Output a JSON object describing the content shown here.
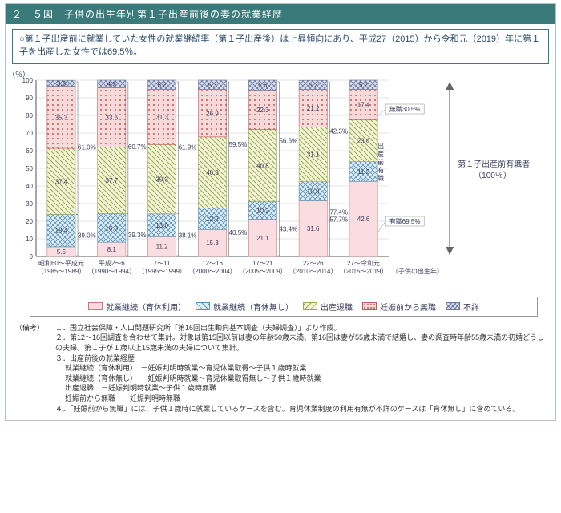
{
  "header": {
    "title": "２－５図　子供の出生年別第１子出産前後の妻の就業経歴"
  },
  "summary": "○第１子出産前に就業していた女性の就業継続率（第１子出産後）は上昇傾向にあり、平成27（2015）から令和元（2019）年に第１子を出産した女性では69.5％。",
  "chart": {
    "type": "stacked-bar",
    "y_label": "（％）",
    "y_max": 100,
    "y_tick_step": 10,
    "categories": [
      {
        "line1": "昭和60～平成元",
        "line2": "（1985～1989）"
      },
      {
        "line1": "平成2～6",
        "line2": "（1990～1994）"
      },
      {
        "line1": "7～11",
        "line2": "（1995～1999）"
      },
      {
        "line1": "12～16",
        "line2": "（2000～2004）"
      },
      {
        "line1": "17～21",
        "line2": "（2005～2009）"
      },
      {
        "line1": "22～26",
        "line2": "（2010～2014）"
      },
      {
        "line1": "27～令和元",
        "line2": "（2015～2019）"
      }
    ],
    "x_axis_right_label": "（子供の出生年）",
    "series_order_bottom_to_top": [
      "就業継続（育休利用）",
      "就業継続（育休無し）",
      "出産退職",
      "妊娠前から無職",
      "不詳"
    ],
    "colors": {
      "就業継続（育休利用）": {
        "fill": "#fadde1",
        "stroke": "#c77"
      },
      "就業継続（育休無し）": {
        "fill": "#dff0f5",
        "stroke": "#5a8fb5",
        "pattern": "hatch-blue"
      },
      "出産退職": {
        "fill": "#f3f6d6",
        "stroke": "#9aa653",
        "pattern": "hatch-green"
      },
      "妊娠前から無職": {
        "fill": "#f6d9d9",
        "stroke": "#c05a5a",
        "pattern": "dots-red"
      },
      "不詳": {
        "fill": "#d9dfea",
        "stroke": "#6a75a0",
        "pattern": "cross-blue"
      }
    },
    "grid_color": "#c8c8c8",
    "axis_color": "#555555",
    "text_color": "#3a3a5a",
    "bar_values": [
      {
        "就業継続（育休利用）": 5.5,
        "就業継続（育休無し）": 18.4,
        "出産退職": 37.4,
        "妊娠前から無職": 35.3,
        "不詳": 3.3
      },
      {
        "就業継続（育休利用）": 8.1,
        "就業継続（育休無し）": 16.3,
        "出産退職": 37.7,
        "妊娠前から無職": 33.6,
        "不詳": 4.3
      },
      {
        "就業継続（育休利用）": 11.2,
        "就業継続（育休無し）": 13.0,
        "出産退職": 39.3,
        "妊娠前から無職": 31.3,
        "不詳": 5.2
      },
      {
        "就業継続（育休利用）": 15.3,
        "就業継続（育休無し）": 12.2,
        "出産退職": 40.3,
        "妊娠前から無職": 26.9,
        "不詳": 5.3
      },
      {
        "就業継続（育休利用）": 21.1,
        "就業継続（育休無し）": 10.2,
        "出産退職": 40.8,
        "妊娠前から無職": 22.3,
        "不詳": 5.6
      },
      {
        "就業継続（育休利用）": 31.6,
        "就業継続（育休無し）": 10.8,
        "出産退職": 31.1,
        "妊娠前から無職": 21.2,
        "不詳": 5.2
      },
      {
        "就業継続（育休利用）": 42.6,
        "就業継続（育休無し）": 11.2,
        "出産退職": 23.6,
        "妊娠前から無職": 17.4,
        "不詳": 5.2
      }
    ],
    "side_annotations": [
      {
        "cat": 0,
        "upper": "61.0%",
        "lower": "39.0%"
      },
      {
        "cat": 1,
        "upper": "60.7%",
        "lower": "39.3%"
      },
      {
        "cat": 2,
        "upper": "61.9%",
        "lower": "38.1%"
      },
      {
        "cat": 3,
        "upper": "59.5%",
        "lower": "40.5%"
      },
      {
        "cat": 4,
        "upper": "56.6%",
        "lower": "43.4%"
      },
      {
        "cat": 5,
        "upper": "42.3%",
        "lower": "57.7%",
        "extra_upper": "77.4%"
      },
      {
        "cat": 6,
        "upper": "",
        "lower": ""
      }
    ],
    "right_labels": {
      "mushoku": "無職30.5%",
      "yuushoku": "有職69.5%",
      "medium_text": "出産前有職",
      "big_label": "第１子出産前有職者\n（100％）"
    }
  },
  "legend": [
    "就業継続（育休利用）",
    "就業継続（育休無し）",
    "出産退職",
    "妊娠前から無職",
    "不詳"
  ],
  "notes": {
    "label": "（備考）",
    "items": [
      "１．国立社会保障・人口問題研究所「第16回出生動向基本調査（夫婦調査）」より作成。",
      "２．第12～16回調査を合わせて集計。対象は第15回以前は妻の年齢50歳未満、第16回は妻が55歳未満で結婚し、妻の調査時年齢55歳未満の初婚どうしの夫婦。第１子が１歳以上15歳未満の夫婦について集計。",
      "３．出産前後の就業経歴",
      "４．「妊娠前から無職」には、子供１歳時に就業しているケースを含む。育児休業制度の利用有無が不詳のケースは「育休無し」に含めている。"
    ],
    "defs": [
      {
        "k": "就業継続（育休利用）",
        "v": "－妊娠判明時就業～育児休業取得～子供１歳時就業"
      },
      {
        "k": "就業継続（育休無し）",
        "v": "－妊娠判明時就業～育児休業取得無し～子供１歳時就業"
      },
      {
        "k": "出産退職",
        "v": "－妊娠判明時就業～子供１歳時無職"
      },
      {
        "k": "妊娠前から無職",
        "v": "－妊娠判明時無職"
      }
    ]
  }
}
